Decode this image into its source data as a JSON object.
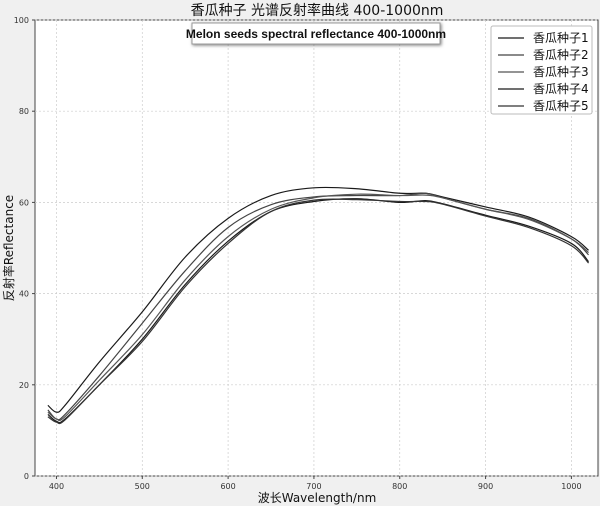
{
  "chart_data": {
    "type": "line",
    "title": "香瓜种子 光谱反射率曲线 400-1000nm",
    "annotation": "Melon seeds spectral reflectance 400-1000nm",
    "xlabel": "波长Wavelength/nm",
    "ylabel": "反射率Reflectance",
    "xlim": [
      375,
      1031
    ],
    "ylim": [
      0,
      100
    ],
    "xticks": [
      400,
      500,
      600,
      700,
      800,
      900,
      1000
    ],
    "yticks": [
      0,
      20,
      40,
      60,
      80,
      100
    ],
    "grid": true,
    "legend_placement": "top-right",
    "x": [
      390,
      400,
      410,
      450,
      500,
      550,
      600,
      650,
      700,
      750,
      800,
      830,
      850,
      900,
      950,
      1000,
      1020
    ],
    "series": [
      {
        "name": "香瓜种子1",
        "color": "#1a1a1a",
        "values": [
          15.5,
          14,
          15.5,
          25,
          36,
          48,
          56.5,
          61.5,
          63.2,
          63,
          62,
          62,
          61.2,
          59,
          56.8,
          52.5,
          49.5
        ]
      },
      {
        "name": "香瓜种子2",
        "color": "#444444",
        "values": [
          14.5,
          12.5,
          13.5,
          22,
          33.5,
          45,
          54.5,
          59.5,
          61.2,
          61.5,
          61.5,
          62,
          61,
          58.5,
          56.5,
          52,
          48.5
        ]
      },
      {
        "name": "香瓜种子3",
        "color": "#555555",
        "values": [
          14,
          12.5,
          13,
          21,
          31,
          43,
          52.5,
          58.5,
          61,
          61.8,
          61.5,
          61.6,
          61,
          58.5,
          56.3,
          52,
          49
        ]
      },
      {
        "name": "香瓜种子4",
        "color": "#1a1a1a",
        "values": [
          13.5,
          12,
          12.5,
          20,
          30,
          42,
          51.5,
          58,
          60.2,
          60.8,
          60,
          60.4,
          59.7,
          57.2,
          54.8,
          51,
          47
        ]
      },
      {
        "name": "香瓜种子5",
        "color": "#333333",
        "values": [
          13,
          11.8,
          12.3,
          20,
          29.5,
          41.5,
          51,
          58,
          60.5,
          60.6,
          60.2,
          60.2,
          59.6,
          57,
          54.5,
          50.5,
          46.7
        ]
      }
    ]
  }
}
